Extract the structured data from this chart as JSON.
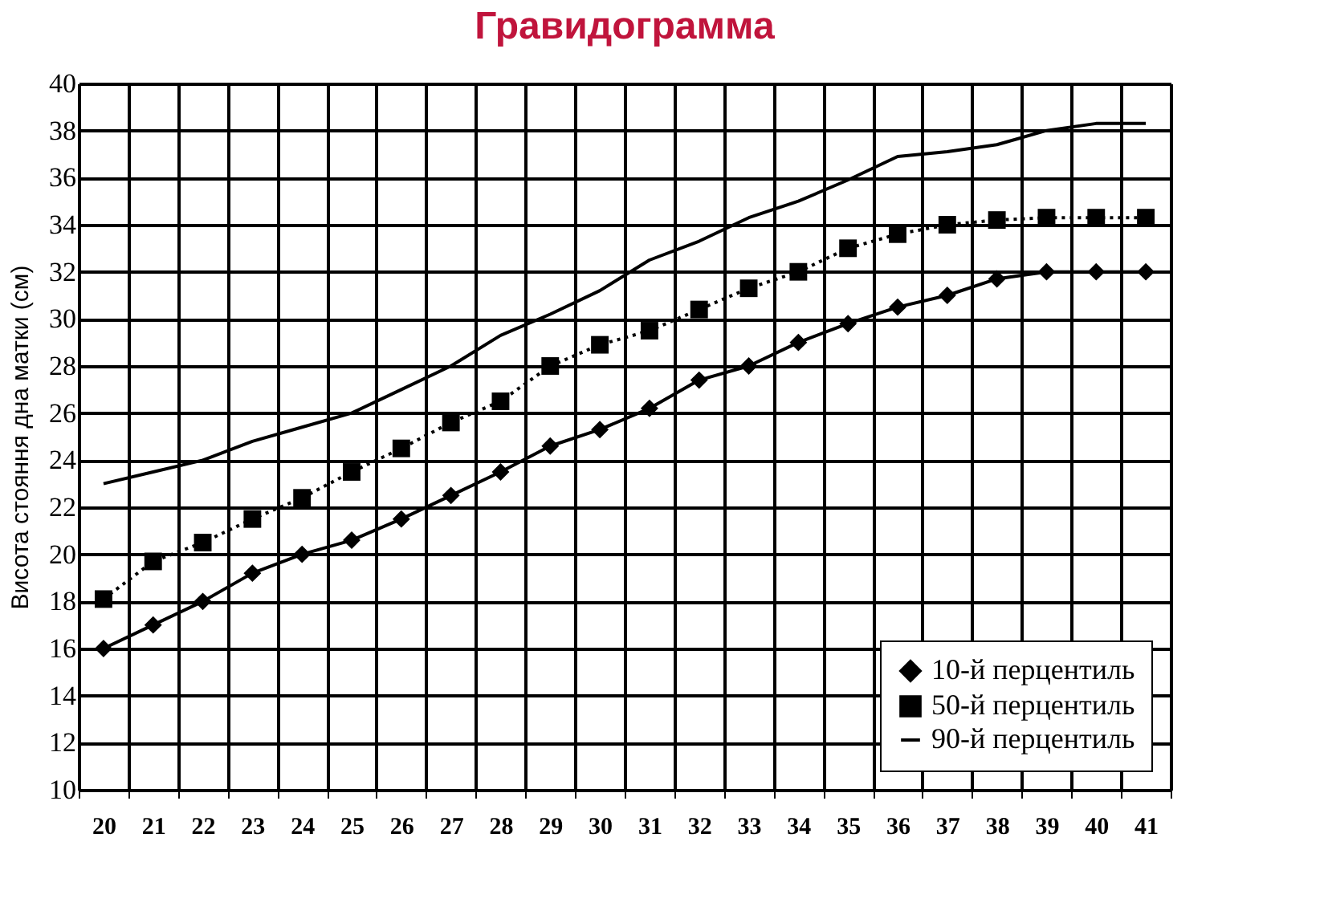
{
  "chart_data": {
    "type": "line",
    "title": "Гравидограмма",
    "ylabel": "Висота стояння дна матки (см)",
    "categories": [
      "20",
      "21",
      "22",
      "23",
      "24",
      "25",
      "26",
      "27",
      "28",
      "29",
      "30",
      "31",
      "32",
      "33",
      "34",
      "35",
      "36",
      "37",
      "38",
      "39",
      "40",
      "41"
    ],
    "series": [
      {
        "name": "10-й перцентиль",
        "color": "#000000",
        "marker": "diamond",
        "line_style": "solid",
        "values": [
          16,
          17,
          18,
          19.2,
          20,
          20.6,
          21.5,
          22.5,
          23.5,
          24.6,
          25.3,
          26.2,
          27.4,
          28,
          29,
          29.8,
          30.5,
          31,
          31.7,
          32,
          32,
          32
        ]
      },
      {
        "name": "50-й перцентиль",
        "color": "#000000",
        "marker": "square",
        "line_style": "dotted",
        "values": [
          18.1,
          19.7,
          20.5,
          21.5,
          22.4,
          23.5,
          24.5,
          25.6,
          26.5,
          28,
          28.9,
          29.5,
          30.4,
          31.3,
          32,
          33,
          33.6,
          34,
          34.2,
          34.3,
          34.3,
          34.3
        ]
      },
      {
        "name": "90-й перцентиль",
        "color": "#000000",
        "marker": "none",
        "line_style": "solid",
        "values": [
          23,
          23.5,
          24,
          24.8,
          25.4,
          26,
          27,
          28,
          29.3,
          30.2,
          31.2,
          32.5,
          33.3,
          34.3,
          35,
          35.9,
          36.9,
          37.1,
          37.4,
          38,
          38.3,
          38.3
        ]
      }
    ],
    "ylim": [
      10,
      40
    ],
    "yticks": [
      10,
      12,
      14,
      16,
      18,
      20,
      22,
      24,
      26,
      28,
      30,
      32,
      34,
      36,
      38,
      40
    ],
    "grid": true,
    "legend": "bottom right"
  }
}
